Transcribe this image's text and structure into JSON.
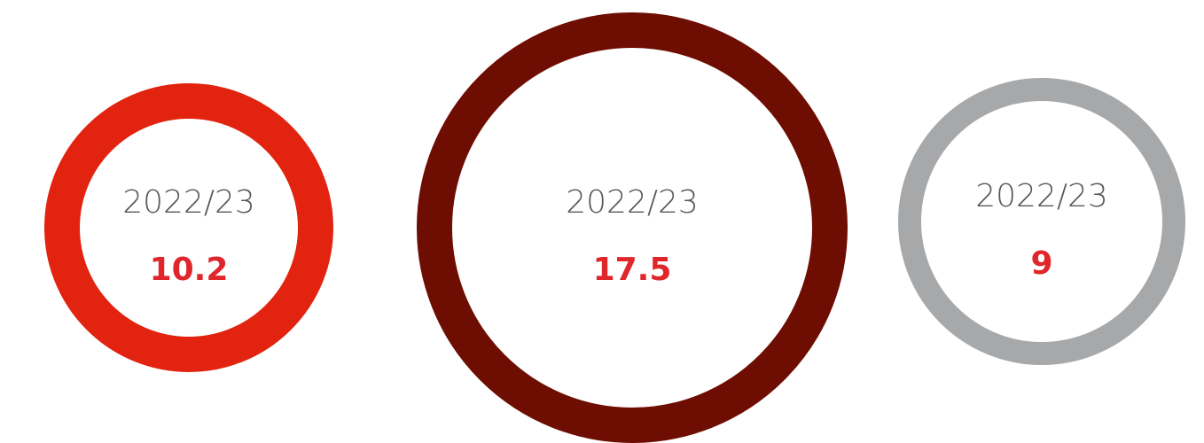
{
  "items": [
    {
      "label": "2022/23",
      "value": 10.2,
      "color": "#e2230f",
      "value_color": "#e0262b"
    },
    {
      "label": "2022/23",
      "value": 17.5,
      "color": "#6e0d02",
      "value_color": "#e0262b"
    },
    {
      "label": "2022/23",
      "value": 9,
      "color": "#a7a8aa",
      "value_color": "#e0262b"
    }
  ]
}
